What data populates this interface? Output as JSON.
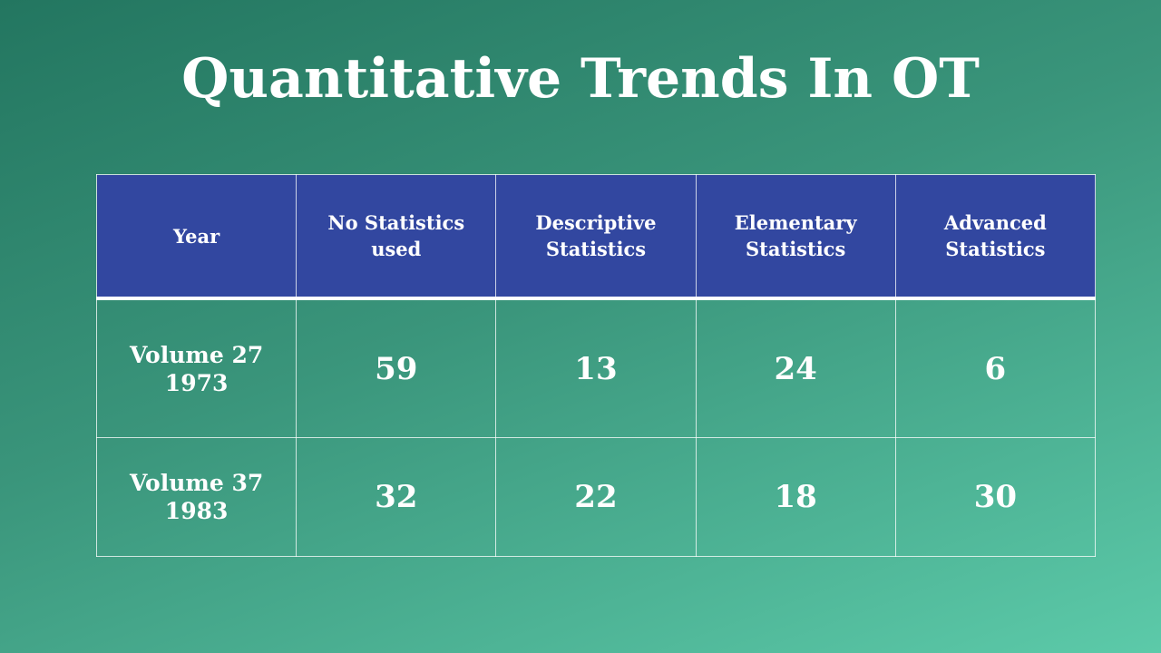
{
  "title": "Quantitative Trends In OT",
  "table": {
    "header": [
      "Year",
      "No Statistics used",
      "Descriptive Statistics",
      "Elementary Statistics",
      "Advanced Statistics"
    ],
    "rows": [
      {
        "label": [
          "Volume 27",
          "1973"
        ],
        "values": [
          59,
          13,
          24,
          6
        ]
      },
      {
        "label": [
          "Volume 37",
          "1983"
        ],
        "values": [
          32,
          22,
          18,
          30
        ]
      }
    ]
  }
}
